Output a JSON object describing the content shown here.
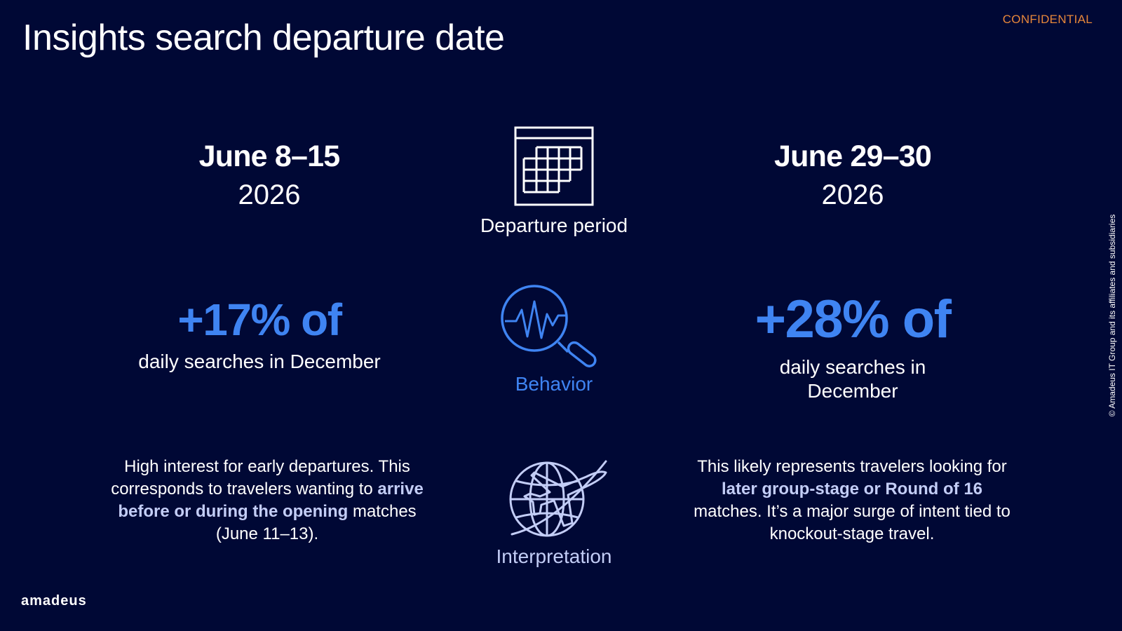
{
  "slide": {
    "title": "Insights search departure date",
    "confidential": "CONFIDENTIAL",
    "copyright": "© Amadeus IT Group and its affiliates and subsidiaries",
    "brand": "amadeus"
  },
  "left_column": {
    "date_range": "June 8–15",
    "year": "2026",
    "stat": "+17% of",
    "stat_caption": "daily searches in December",
    "interpretation": {
      "part1": "High interest for early departures. This corresponds to travelers wanting to ",
      "bold": "arrive before or during the opening",
      "part2": " matches (June 11–13)."
    }
  },
  "center_column": {
    "departure_icon": "calendar-icon",
    "departure_label": "Departure period",
    "behavior_icon": "search-pulse-icon",
    "behavior_label": "Behavior",
    "interpretation_icon": "globe-airplane-icon",
    "interpretation_label": "Interpretation"
  },
  "right_column": {
    "date_range": "June 29–30",
    "year": "2026",
    "stat": "+28% of",
    "stat_caption": "daily searches in December",
    "interpretation": {
      "part1": "This likely represents travelers looking for ",
      "bold": "later group-stage or Round of 16",
      "part2": " matches. It’s a major surge of intent tied to knockout-stage travel."
    }
  },
  "colors": {
    "background": "#000835",
    "accent_blue": "#3f84f2",
    "confidential_orange": "#e7873a",
    "highlight_lavender": "#c3cdf6"
  }
}
